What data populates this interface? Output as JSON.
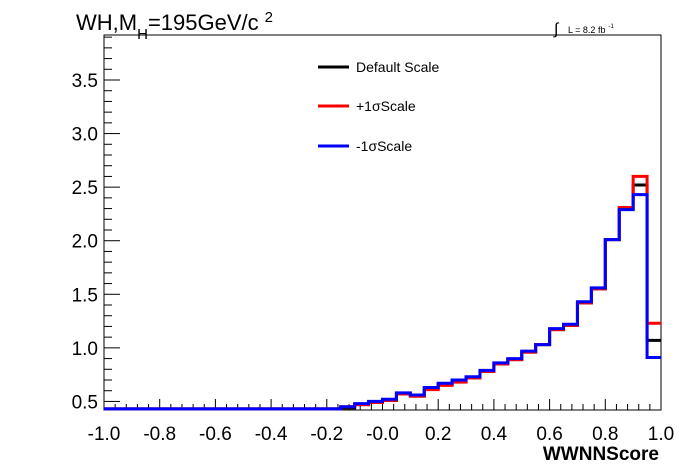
{
  "header": {
    "title_main": "WH,M",
    "title_sub": "H",
    "title_rest": "=195GeV/c",
    "title_sup": "2",
    "lumi_integral": "∫",
    "lumi_text": "L = 8.2 fb",
    "lumi_sup": "-1"
  },
  "chart_data": {
    "type": "line",
    "style": "step-histogram",
    "xlabel": "WWNNScore",
    "ylabel": "",
    "xlim": [
      -1.0,
      1.0
    ],
    "ylim": [
      0.42,
      3.92
    ],
    "grid": false,
    "legend_position": "top-center",
    "x_ticks": [
      -1.0,
      -0.8,
      -0.6,
      -0.4,
      -0.2,
      0.0,
      0.2,
      0.4,
      0.6,
      0.8,
      1.0
    ],
    "x_tick_labels": [
      "-1.0",
      "-0.8",
      "-0.6",
      "-0.4",
      "-0.2",
      "-0.0",
      "0.2",
      "0.4",
      "0.6",
      "0.8",
      "1.0"
    ],
    "y_ticks": [
      0.5,
      1.0,
      1.5,
      2.0,
      2.5,
      3.0,
      3.5
    ],
    "y_tick_labels": [
      "0.5",
      "1.0",
      "1.5",
      "2.0",
      "2.5",
      "3.0",
      "3.5"
    ],
    "bin_edges": [
      -1.0,
      -0.95,
      -0.9,
      -0.85,
      -0.8,
      -0.75,
      -0.7,
      -0.65,
      -0.6,
      -0.55,
      -0.5,
      -0.45,
      -0.4,
      -0.35,
      -0.3,
      -0.25,
      -0.2,
      -0.15,
      -0.1,
      -0.05,
      0.0,
      0.05,
      0.1,
      0.15,
      0.2,
      0.25,
      0.3,
      0.35,
      0.4,
      0.45,
      0.5,
      0.55,
      0.6,
      0.65,
      0.7,
      0.75,
      0.8,
      0.85,
      0.9,
      0.95,
      1.0
    ],
    "series": [
      {
        "name": "Default Scale",
        "color": "#000000",
        "values": [
          0.43,
          0.43,
          0.43,
          0.43,
          0.43,
          0.43,
          0.43,
          0.43,
          0.43,
          0.43,
          0.43,
          0.43,
          0.43,
          0.43,
          0.43,
          0.43,
          0.43,
          0.44,
          0.47,
          0.49,
          0.51,
          0.57,
          0.55,
          0.62,
          0.66,
          0.69,
          0.72,
          0.78,
          0.85,
          0.89,
          0.96,
          1.03,
          1.17,
          1.21,
          1.42,
          1.55,
          2.01,
          2.3,
          2.52,
          1.07
        ]
      },
      {
        "name": "+1σScale",
        "color": "#ff0000",
        "values": [
          0.43,
          0.43,
          0.43,
          0.43,
          0.43,
          0.43,
          0.43,
          0.43,
          0.43,
          0.43,
          0.43,
          0.43,
          0.43,
          0.43,
          0.43,
          0.43,
          0.43,
          0.45,
          0.47,
          0.49,
          0.51,
          0.57,
          0.55,
          0.61,
          0.65,
          0.68,
          0.72,
          0.78,
          0.85,
          0.89,
          0.96,
          1.03,
          1.17,
          1.21,
          1.42,
          1.55,
          2.01,
          2.31,
          2.6,
          1.23
        ]
      },
      {
        "name": "-1σScale",
        "color": "#0000ff",
        "values": [
          0.43,
          0.43,
          0.43,
          0.43,
          0.43,
          0.43,
          0.43,
          0.43,
          0.43,
          0.43,
          0.43,
          0.43,
          0.43,
          0.43,
          0.43,
          0.43,
          0.43,
          0.45,
          0.48,
          0.5,
          0.52,
          0.58,
          0.56,
          0.63,
          0.67,
          0.7,
          0.73,
          0.79,
          0.86,
          0.9,
          0.97,
          1.03,
          1.18,
          1.22,
          1.43,
          1.56,
          2.01,
          2.29,
          2.43,
          0.91
        ]
      }
    ]
  }
}
